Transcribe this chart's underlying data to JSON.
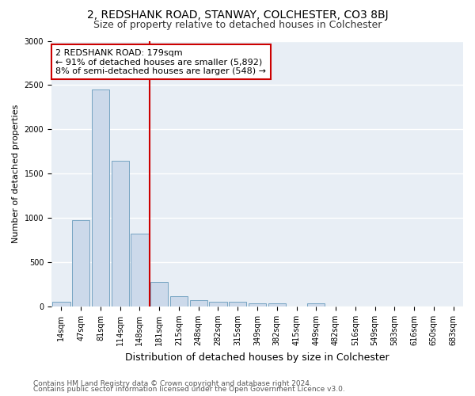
{
  "title": "2, REDSHANK ROAD, STANWAY, COLCHESTER, CO3 8BJ",
  "subtitle": "Size of property relative to detached houses in Colchester",
  "xlabel": "Distribution of detached houses by size in Colchester",
  "ylabel": "Number of detached properties",
  "categories": [
    "14sqm",
    "47sqm",
    "81sqm",
    "114sqm",
    "148sqm",
    "181sqm",
    "215sqm",
    "248sqm",
    "282sqm",
    "315sqm",
    "349sqm",
    "382sqm",
    "415sqm",
    "449sqm",
    "482sqm",
    "516sqm",
    "549sqm",
    "583sqm",
    "616sqm",
    "650sqm",
    "683sqm"
  ],
  "values": [
    50,
    975,
    2450,
    1650,
    825,
    275,
    120,
    75,
    55,
    50,
    40,
    35,
    0,
    35,
    0,
    0,
    0,
    0,
    0,
    0,
    0
  ],
  "bar_color": "#ccd9ea",
  "bar_edge_color": "#6699bb",
  "redline_x": 5,
  "annotation_line1": "2 REDSHANK ROAD: 179sqm",
  "annotation_line2": "← 91% of detached houses are smaller (5,892)",
  "annotation_line3": "8% of semi-detached houses are larger (548) →",
  "annotation_box_color": "#ffffff",
  "annotation_box_edge_color": "#cc0000",
  "redline_color": "#cc0000",
  "ylim": [
    0,
    3000
  ],
  "yticks": [
    0,
    500,
    1000,
    1500,
    2000,
    2500,
    3000
  ],
  "footer1": "Contains HM Land Registry data © Crown copyright and database right 2024.",
  "footer2": "Contains public sector information licensed under the Open Government Licence v3.0.",
  "fig_background_color": "#ffffff",
  "plot_background_color": "#e8eef5",
  "grid_color": "#ffffff",
  "title_fontsize": 10,
  "subtitle_fontsize": 9,
  "ylabel_fontsize": 8,
  "xlabel_fontsize": 9,
  "tick_fontsize": 7,
  "annotation_fontsize": 8,
  "footer_fontsize": 6.5
}
